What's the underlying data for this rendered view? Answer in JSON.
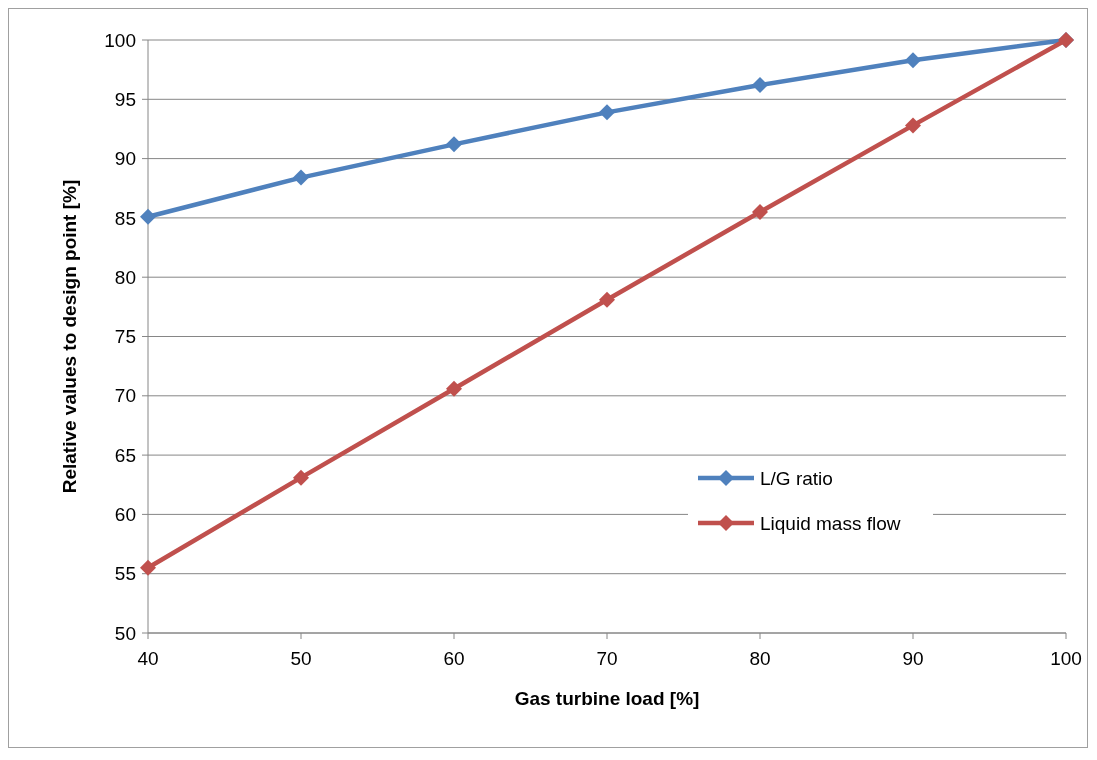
{
  "chart_data": {
    "type": "line",
    "xlabel": "Gas turbine load [%]",
    "ylabel": "Relative values to design point [%]",
    "x": [
      40,
      50,
      60,
      70,
      80,
      90,
      100
    ],
    "series": [
      {
        "name": "L/G ratio",
        "color": "#4f81bd",
        "values": [
          85.1,
          88.4,
          91.2,
          93.9,
          96.2,
          98.3,
          100
        ]
      },
      {
        "name": "Liquid mass flow",
        "color": "#c0504d",
        "values": [
          55.5,
          63.1,
          70.6,
          78.1,
          85.5,
          92.8,
          100
        ]
      }
    ],
    "xlim": [
      40,
      100
    ],
    "xticks": [
      40,
      50,
      60,
      70,
      80,
      90,
      100
    ],
    "ylim": [
      50,
      100
    ],
    "yticks": [
      50,
      55,
      60,
      65,
      70,
      75,
      80,
      85,
      90,
      95,
      100
    ],
    "grid": "y",
    "legend": "right",
    "marker": "diamond",
    "line_style": "solid"
  }
}
